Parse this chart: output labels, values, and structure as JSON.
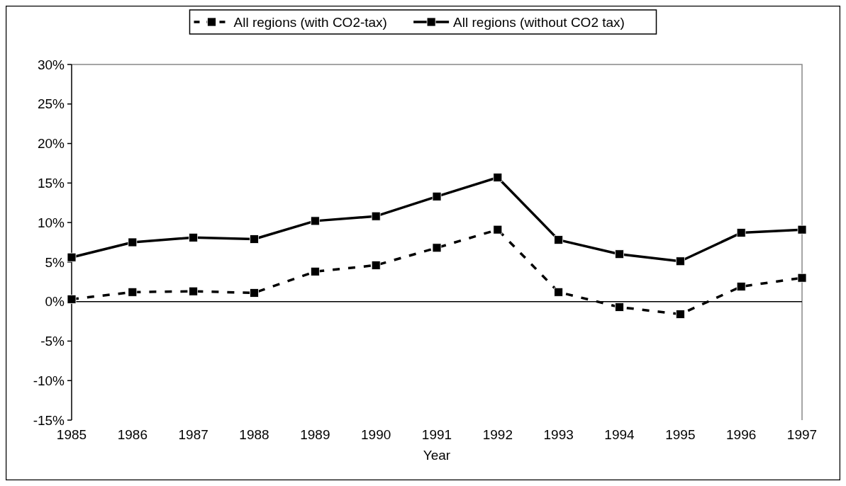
{
  "chart_data": {
    "type": "line",
    "xlabel": "Year",
    "categories": [
      "1985",
      "1986",
      "1987",
      "1988",
      "1989",
      "1990",
      "1991",
      "1992",
      "1993",
      "1994",
      "1995",
      "1996",
      "1997"
    ],
    "series": [
      {
        "name": "All regions (with CO2-tax)",
        "color": "#000000",
        "line_style": "dashed",
        "values": [
          0.3,
          1.2,
          1.3,
          1.1,
          3.8,
          4.6,
          6.8,
          9.1,
          1.2,
          -0.7,
          -1.6,
          1.9,
          3.0
        ]
      },
      {
        "name": "All regions (without CO2 tax)",
        "color": "#000000",
        "line_style": "solid",
        "values": [
          5.6,
          7.5,
          8.1,
          7.9,
          10.2,
          10.8,
          13.3,
          15.7,
          7.8,
          6.0,
          5.1,
          8.7,
          9.1
        ]
      }
    ],
    "ylim": [
      -15,
      30
    ],
    "yticks": [
      {
        "value": -15,
        "label": "-15%"
      },
      {
        "value": -10,
        "label": "-10%"
      },
      {
        "value": -5,
        "label": "-5%"
      },
      {
        "value": 0,
        "label": "0%"
      },
      {
        "value": 5,
        "label": "5%"
      },
      {
        "value": 10,
        "label": "10%"
      },
      {
        "value": 15,
        "label": "15%"
      },
      {
        "value": 20,
        "label": "20%"
      },
      {
        "value": 25,
        "label": "25%"
      },
      {
        "value": 30,
        "label": "30%"
      }
    ],
    "ref_lines": [
      {
        "axis": "y",
        "value": 0,
        "color": "#000000"
      }
    ],
    "grid": false,
    "legend": "top",
    "marker": "square"
  }
}
